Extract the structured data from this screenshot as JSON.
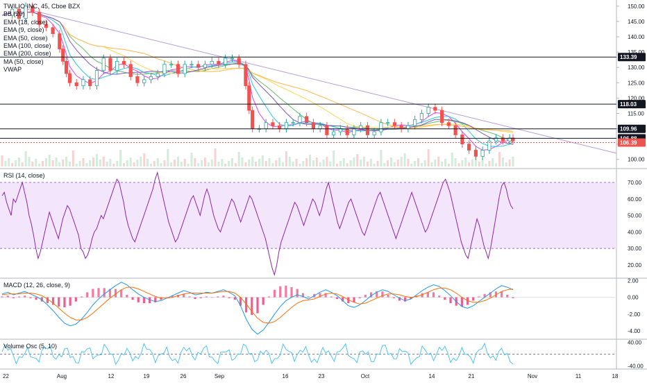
{
  "chart_data": [
    {
      "type": "candlestick",
      "name": "price",
      "title": "TWILIO INC, 45, Cboe BZX",
      "indicators": [
        "BB (20)",
        "EMA (18, close)",
        "EMA (9, close)",
        "EMA (50, close)",
        "EMA (100, close)",
        "EMA (200, close)",
        "MA (50, close)",
        "VWAP"
      ],
      "y_ticks": [
        "150.00",
        "145.00",
        "140.00",
        "135.00",
        "130.00",
        "125.00",
        "120.00",
        "115.00",
        "110.00",
        "105.00",
        "100.00"
      ],
      "ylim": [
        97,
        152
      ],
      "x_ticks": [
        "22",
        "Aug",
        "12",
        "19",
        "26",
        "Sep",
        "16",
        "23",
        "Oct",
        "14",
        "21",
        "Nov",
        "11",
        "18"
      ],
      "horizontal_levels": [
        {
          "label": "133.39",
          "value": 133.39,
          "color": "#131722"
        },
        {
          "label": "118.03",
          "value": 118.03,
          "color": "#131722"
        },
        {
          "label": "109.96",
          "value": 109.96,
          "color": "#131722"
        },
        {
          "label": "106.88",
          "value": 106.88,
          "color": "#131722"
        }
      ],
      "price_marker": {
        "label": "106.39",
        "value": 106.39,
        "color": "#ef5350"
      },
      "close_path": [
        [
          0,
          147
        ],
        [
          3,
          149
        ],
        [
          5,
          146
        ],
        [
          7,
          150
        ],
        [
          9,
          148
        ],
        [
          11,
          144
        ],
        [
          13,
          143
        ],
        [
          15,
          141
        ],
        [
          17,
          136
        ],
        [
          18,
          132
        ],
        [
          19,
          128
        ],
        [
          20,
          125
        ],
        [
          22,
          124
        ],
        [
          24,
          126
        ],
        [
          26,
          124
        ],
        [
          28,
          129
        ],
        [
          30,
          133
        ],
        [
          32,
          129
        ],
        [
          34,
          132
        ],
        [
          36,
          131
        ],
        [
          38,
          127
        ],
        [
          40,
          125
        ],
        [
          42,
          126
        ],
        [
          44,
          127
        ],
        [
          46,
          128
        ],
        [
          48,
          131
        ],
        [
          50,
          131
        ],
        [
          52,
          128
        ],
        [
          54,
          131
        ],
        [
          56,
          131
        ],
        [
          58,
          130
        ],
        [
          60,
          131
        ],
        [
          62,
          132
        ],
        [
          64,
          131
        ],
        [
          66,
          133
        ],
        [
          68,
          133
        ],
        [
          70,
          131
        ],
        [
          72,
          124
        ],
        [
          73,
          116
        ],
        [
          74,
          110
        ],
        [
          76,
          110
        ],
        [
          78,
          112
        ],
        [
          80,
          111
        ],
        [
          82,
          110
        ],
        [
          84,
          112
        ],
        [
          86,
          112
        ],
        [
          88,
          114
        ],
        [
          90,
          112
        ],
        [
          92,
          110
        ],
        [
          94,
          111
        ],
        [
          96,
          108
        ],
        [
          98,
          109
        ],
        [
          100,
          110
        ],
        [
          102,
          108
        ],
        [
          104,
          110
        ],
        [
          106,
          111
        ],
        [
          108,
          108
        ],
        [
          110,
          109
        ],
        [
          112,
          112
        ],
        [
          114,
          112
        ],
        [
          116,
          111
        ],
        [
          118,
          110
        ],
        [
          120,
          111
        ],
        [
          122,
          113
        ],
        [
          124,
          115
        ],
        [
          126,
          117
        ],
        [
          128,
          116
        ],
        [
          130,
          112
        ],
        [
          132,
          111
        ],
        [
          134,
          108
        ],
        [
          136,
          105
        ],
        [
          138,
          103
        ],
        [
          140,
          101
        ],
        [
          142,
          103
        ],
        [
          144,
          106
        ],
        [
          146,
          107
        ],
        [
          148,
          106
        ],
        [
          150,
          107
        ],
        [
          151,
          106
        ]
      ]
    },
    {
      "type": "line",
      "name": "rsi",
      "title": "RSI (14, close)",
      "y_ticks": [
        "70.00",
        "60.00",
        "50.00",
        "40.00",
        "30.00",
        "20.00"
      ],
      "ylim": [
        12,
        78
      ],
      "band": [
        30,
        70
      ],
      "values": [
        62,
        64,
        58,
        54,
        50,
        60,
        58,
        62,
        66,
        70,
        64,
        58,
        50,
        45,
        38,
        30,
        24,
        28,
        34,
        40,
        46,
        52,
        48,
        44,
        40,
        36,
        42,
        48,
        52,
        56,
        54,
        50,
        46,
        42,
        38,
        30,
        28,
        24,
        26,
        30,
        36,
        40,
        42,
        46,
        50,
        48,
        52,
        56,
        60,
        64,
        68,
        72,
        70,
        64,
        58,
        50,
        44,
        40,
        36,
        34,
        38,
        42,
        46,
        50,
        54,
        58,
        62,
        66,
        72,
        76,
        70,
        64,
        58,
        52,
        46,
        42,
        38,
        34,
        36,
        40,
        44,
        48,
        52,
        56,
        60,
        62,
        58,
        54,
        50,
        56,
        62,
        66,
        62,
        56,
        50,
        46,
        42,
        40,
        44,
        48,
        52,
        56,
        60,
        58,
        54,
        50,
        46,
        50,
        54,
        58,
        62,
        60,
        56,
        52,
        48,
        44,
        40,
        36,
        30,
        24,
        18,
        14,
        20,
        28,
        34,
        38,
        42,
        46,
        50,
        54,
        58,
        56,
        52,
        48,
        44,
        48,
        52,
        56,
        60,
        58,
        54,
        50,
        54,
        60,
        66,
        70,
        64,
        58,
        52,
        46,
        42,
        46,
        50,
        54,
        58,
        60,
        56,
        52,
        48,
        44,
        40,
        38,
        42,
        46,
        50,
        54,
        58,
        62,
        64,
        60,
        56,
        52,
        48,
        44,
        40,
        36,
        40,
        44,
        48,
        52,
        56,
        60,
        64,
        60,
        56,
        52,
        48,
        44,
        40,
        42,
        46,
        50,
        54,
        58,
        62,
        66,
        70,
        72,
        68,
        64,
        58,
        52,
        46,
        40,
        34,
        30,
        26,
        24,
        30,
        36,
        42,
        48,
        44,
        38,
        32,
        28,
        24,
        30,
        38,
        46,
        54,
        62,
        68,
        70,
        66,
        60,
        56,
        54
      ]
    },
    {
      "type": "line",
      "name": "macd",
      "title": "MACD (12, 26, close, 9)",
      "y_ticks": [
        "2.00",
        "0.00",
        "-2.00",
        "-4.00"
      ],
      "ylim": [
        -5,
        2.2
      ],
      "series": [
        {
          "name": "MACD",
          "color": "#2196f3",
          "values": [
            0.4,
            0.6,
            0.3,
            0.5,
            0.7,
            0.4,
            0.1,
            -0.3,
            -0.9,
            -1.6,
            -2.4,
            -3.1,
            -3.4,
            -3.2,
            -2.6,
            -1.8,
            -0.9,
            -0.2,
            0.4,
            0.9,
            1.4,
            1.8,
            1.5,
            0.9,
            0.4,
            0.0,
            -0.3,
            -0.5,
            -0.4,
            -0.1,
            0.2,
            0.5,
            0.8,
            0.6,
            0.3,
            0.4,
            0.6,
            0.5,
            0.7,
            0.9,
            0.6,
            0.2,
            -1.0,
            -2.6,
            -3.8,
            -4.4,
            -3.9,
            -3.0,
            -2.0,
            -1.1,
            -0.4,
            0.0,
            0.3,
            0.1,
            -0.2,
            0.2,
            0.6,
            0.9,
            0.6,
            0.2,
            -0.4,
            -1.0,
            -1.2,
            -0.9,
            -0.4,
            0.2,
            0.6,
            0.9,
            0.7,
            0.3,
            -0.1,
            -0.4,
            -0.2,
            0.3,
            0.8,
            1.2,
            1.5,
            1.3,
            0.8,
            0.2,
            -0.5,
            -1.1,
            -1.3,
            -1.0,
            -0.5,
            0.0,
            0.5,
            1.0,
            1.4,
            1.2,
            0.9
          ]
        },
        {
          "name": "Signal",
          "color": "#ff6d00",
          "values": [
            0.3,
            0.4,
            0.4,
            0.4,
            0.5,
            0.5,
            0.4,
            0.2,
            -0.2,
            -0.7,
            -1.3,
            -1.9,
            -2.4,
            -2.7,
            -2.7,
            -2.4,
            -1.9,
            -1.3,
            -0.7,
            -0.1,
            0.4,
            0.9,
            1.2,
            1.2,
            1.0,
            0.7,
            0.4,
            0.1,
            -0.1,
            -0.1,
            0.0,
            0.2,
            0.4,
            0.5,
            0.5,
            0.5,
            0.5,
            0.5,
            0.6,
            0.7,
            0.7,
            0.5,
            0.0,
            -0.8,
            -1.7,
            -2.5,
            -3.0,
            -3.1,
            -2.9,
            -2.4,
            -1.8,
            -1.2,
            -0.7,
            -0.4,
            -0.3,
            -0.2,
            0.1,
            0.4,
            0.5,
            0.4,
            0.1,
            -0.3,
            -0.6,
            -0.8,
            -0.7,
            -0.4,
            -0.1,
            0.2,
            0.4,
            0.4,
            0.3,
            0.1,
            0.0,
            0.1,
            0.3,
            0.6,
            0.9,
            1.1,
            1.1,
            0.9,
            0.5,
            0.0,
            -0.4,
            -0.6,
            -0.6,
            -0.4,
            -0.1,
            0.3,
            0.7,
            0.9,
            1.0
          ]
        }
      ]
    },
    {
      "type": "line",
      "name": "volume-osc",
      "title": "Volume Osc (5, 10)",
      "y_ticks": [
        "40.00",
        "-40.00"
      ],
      "ylim": [
        -50,
        48
      ]
    }
  ]
}
